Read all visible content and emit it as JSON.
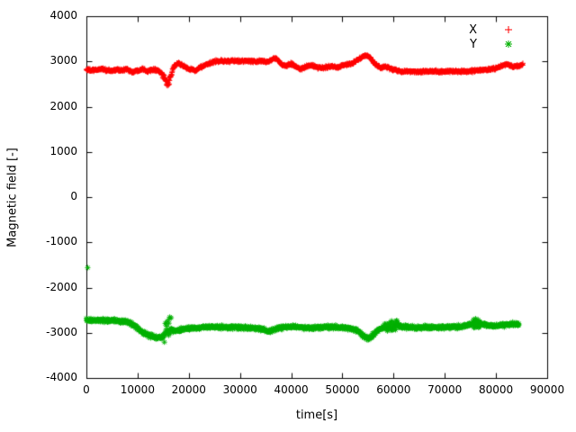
{
  "chart_data": {
    "type": "scatter",
    "title": "",
    "xlabel": "time[s]",
    "ylabel": "Magnetic field [-]",
    "xlim": [
      0,
      90000
    ],
    "ylim": [
      -4000,
      4000
    ],
    "xticks": [
      0,
      10000,
      20000,
      30000,
      40000,
      50000,
      60000,
      70000,
      80000,
      90000
    ],
    "yticks": [
      -4000,
      -3000,
      -2000,
      -1000,
      0,
      1000,
      2000,
      3000,
      4000
    ],
    "grid": false,
    "legend_position": "top-right",
    "sample_step": 55,
    "series": [
      {
        "name": "X",
        "color": "#ff0000",
        "marker": "plus",
        "noise": 28,
        "spread_zones": [
          [
            14900,
            17000,
            60
          ]
        ],
        "outliers": [],
        "control_points": [
          [
            0,
            2820
          ],
          [
            1000,
            2800
          ],
          [
            2000,
            2810
          ],
          [
            3000,
            2840
          ],
          [
            4000,
            2800
          ],
          [
            5000,
            2790
          ],
          [
            6000,
            2820
          ],
          [
            7000,
            2800
          ],
          [
            8000,
            2830
          ],
          [
            9000,
            2760
          ],
          [
            10000,
            2800
          ],
          [
            11000,
            2840
          ],
          [
            12000,
            2780
          ],
          [
            13000,
            2830
          ],
          [
            14000,
            2800
          ],
          [
            14800,
            2720
          ],
          [
            15300,
            2600
          ],
          [
            15800,
            2500
          ],
          [
            16200,
            2560
          ],
          [
            16600,
            2700
          ],
          [
            17000,
            2870
          ],
          [
            17500,
            2930
          ],
          [
            18000,
            2960
          ],
          [
            18500,
            2930
          ],
          [
            19000,
            2890
          ],
          [
            20000,
            2840
          ],
          [
            21000,
            2810
          ],
          [
            21500,
            2790
          ],
          [
            22000,
            2860
          ],
          [
            23000,
            2900
          ],
          [
            24000,
            2950
          ],
          [
            25000,
            3000
          ],
          [
            26000,
            3010
          ],
          [
            28000,
            3005
          ],
          [
            30000,
            3010
          ],
          [
            32000,
            3005
          ],
          [
            33500,
            2995
          ],
          [
            34500,
            3010
          ],
          [
            35500,
            2990
          ],
          [
            36200,
            3040
          ],
          [
            37000,
            3070
          ],
          [
            37600,
            3000
          ],
          [
            38200,
            2930
          ],
          [
            39000,
            2890
          ],
          [
            39800,
            2950
          ],
          [
            40500,
            2920
          ],
          [
            41200,
            2860
          ],
          [
            42000,
            2840
          ],
          [
            43000,
            2890
          ],
          [
            44000,
            2910
          ],
          [
            45000,
            2870
          ],
          [
            46000,
            2850
          ],
          [
            47000,
            2880
          ],
          [
            48000,
            2895
          ],
          [
            49000,
            2870
          ],
          [
            50000,
            2915
          ],
          [
            51000,
            2930
          ],
          [
            52000,
            2960
          ],
          [
            53000,
            3030
          ],
          [
            54000,
            3110
          ],
          [
            54700,
            3140
          ],
          [
            55300,
            3090
          ],
          [
            56000,
            2990
          ],
          [
            56700,
            2910
          ],
          [
            57500,
            2860
          ],
          [
            58300,
            2890
          ],
          [
            59000,
            2855
          ],
          [
            60000,
            2820
          ],
          [
            61000,
            2790
          ],
          [
            62000,
            2775
          ],
          [
            63000,
            2780
          ],
          [
            65000,
            2775
          ],
          [
            67000,
            2780
          ],
          [
            69000,
            2778
          ],
          [
            71000,
            2780
          ],
          [
            73000,
            2778
          ],
          [
            75000,
            2785
          ],
          [
            76500,
            2800
          ],
          [
            78000,
            2815
          ],
          [
            79500,
            2840
          ],
          [
            80500,
            2870
          ],
          [
            81500,
            2915
          ],
          [
            82300,
            2935
          ],
          [
            83000,
            2890
          ],
          [
            84000,
            2895
          ],
          [
            85000,
            2915
          ],
          [
            85300,
            2950
          ]
        ]
      },
      {
        "name": "Y",
        "color": "#00b000",
        "marker": "asterisk",
        "noise": 38,
        "spread_zones": [
          [
            15200,
            16600,
            260
          ],
          [
            58200,
            60800,
            110
          ],
          [
            75400,
            76900,
            90
          ]
        ],
        "outliers": [
          [
            250,
            -1560
          ]
        ],
        "control_points": [
          [
            0,
            -2720
          ],
          [
            1500,
            -2730
          ],
          [
            3000,
            -2720
          ],
          [
            4500,
            -2735
          ],
          [
            6000,
            -2740
          ],
          [
            7500,
            -2750
          ],
          [
            8500,
            -2780
          ],
          [
            9500,
            -2850
          ],
          [
            10500,
            -2950
          ],
          [
            11500,
            -3030
          ],
          [
            12500,
            -3060
          ],
          [
            13200,
            -3100
          ],
          [
            14000,
            -3120
          ],
          [
            14800,
            -3090
          ],
          [
            15500,
            -3000
          ],
          [
            16000,
            -2850
          ],
          [
            16400,
            -2900
          ],
          [
            17000,
            -2960
          ],
          [
            18000,
            -2950
          ],
          [
            19000,
            -2910
          ],
          [
            20000,
            -2905
          ],
          [
            21000,
            -2890
          ],
          [
            22000,
            -2885
          ],
          [
            24000,
            -2870
          ],
          [
            26000,
            -2880
          ],
          [
            28000,
            -2872
          ],
          [
            30000,
            -2885
          ],
          [
            32000,
            -2895
          ],
          [
            33500,
            -2905
          ],
          [
            34800,
            -2940
          ],
          [
            35800,
            -2975
          ],
          [
            36800,
            -2930
          ],
          [
            37800,
            -2890
          ],
          [
            39000,
            -2875
          ],
          [
            40000,
            -2870
          ],
          [
            42000,
            -2880
          ],
          [
            44000,
            -2895
          ],
          [
            46000,
            -2880
          ],
          [
            48000,
            -2872
          ],
          [
            50000,
            -2882
          ],
          [
            51500,
            -2900
          ],
          [
            52800,
            -2940
          ],
          [
            53800,
            -3030
          ],
          [
            54600,
            -3110
          ],
          [
            55200,
            -3130
          ],
          [
            55900,
            -3060
          ],
          [
            56700,
            -2970
          ],
          [
            57500,
            -2910
          ],
          [
            58500,
            -2870
          ],
          [
            59500,
            -2840
          ],
          [
            60500,
            -2830
          ],
          [
            61500,
            -2855
          ],
          [
            62500,
            -2870
          ],
          [
            64000,
            -2880
          ],
          [
            66000,
            -2882
          ],
          [
            68000,
            -2880
          ],
          [
            70000,
            -2878
          ],
          [
            72000,
            -2868
          ],
          [
            73500,
            -2858
          ],
          [
            74500,
            -2840
          ],
          [
            75500,
            -2790
          ],
          [
            76200,
            -2760
          ],
          [
            77000,
            -2800
          ],
          [
            78000,
            -2830
          ],
          [
            79500,
            -2850
          ],
          [
            81000,
            -2835
          ],
          [
            82000,
            -2820
          ],
          [
            83000,
            -2805
          ],
          [
            84000,
            -2818
          ],
          [
            84500,
            -2820
          ]
        ]
      }
    ]
  }
}
